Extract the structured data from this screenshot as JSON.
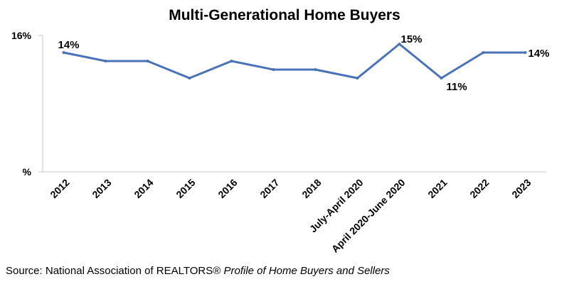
{
  "chart_data": {
    "type": "line",
    "title": "Multi-Generational Home Buyers",
    "xlabel": "",
    "ylabel": "",
    "categories": [
      "2012",
      "2013",
      "2014",
      "2015",
      "2016",
      "2017",
      "2018",
      "July-April 2020",
      "April 2020-June 2020",
      "2021",
      "2022",
      "2023"
    ],
    "series": [
      {
        "values": [
          14,
          13,
          13,
          11,
          13,
          12,
          12,
          11,
          15,
          11,
          14,
          14
        ],
        "color": "#4a72b8"
      }
    ],
    "ylim": [
      0,
      16
    ],
    "yticks": [
      {
        "value": 16,
        "label": "16%"
      },
      {
        "value": 0,
        "label": "%"
      }
    ],
    "data_labels": [
      {
        "index": 0,
        "text": "14%"
      },
      {
        "index": 8,
        "text": "15%"
      },
      {
        "index": 9,
        "text": "11%"
      },
      {
        "index": 11,
        "text": "14%"
      }
    ],
    "grid": false,
    "legend": "none",
    "source_prefix": "Source: National Association of REALTORS®",
    "source_title": "Profile of Home Buyers and Sellers"
  }
}
